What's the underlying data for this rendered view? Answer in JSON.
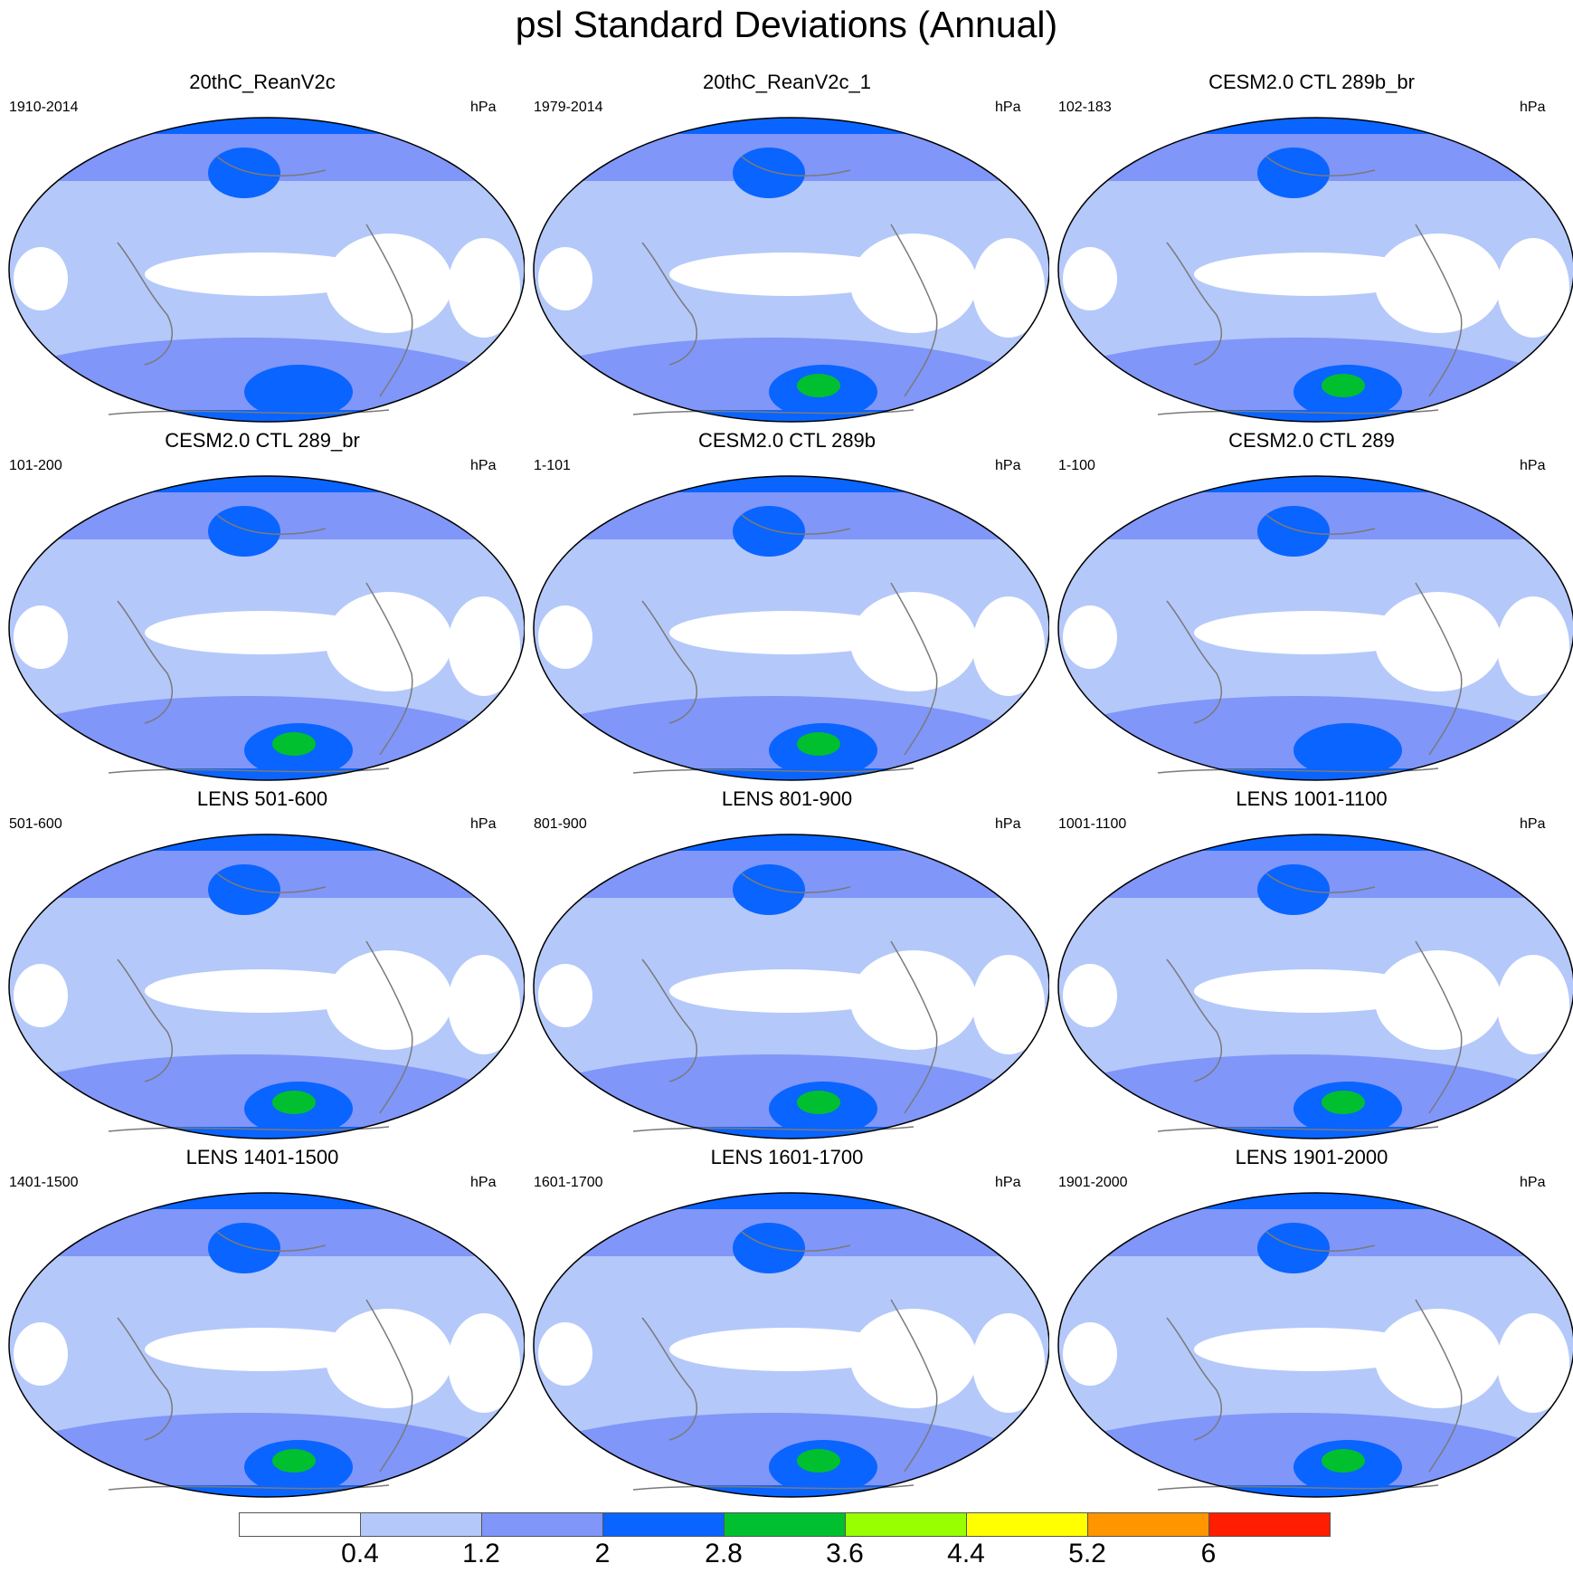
{
  "title": "psl Standard Deviations (Annual)",
  "unit_label": "hPa",
  "colorbar": {
    "levels": [
      "0.4",
      "1.2",
      "2",
      "2.8",
      "3.6",
      "4.4",
      "5.2",
      "6"
    ],
    "colors": [
      "#ffffff",
      "#b4c8fa",
      "#8096f8",
      "#0a64ff",
      "#00c030",
      "#96ff00",
      "#ffff00",
      "#ff9600",
      "#ff1e00"
    ]
  },
  "panels": [
    {
      "title": "20thC_ReanV2c",
      "years": "1910-2014",
      "unit": "hPa",
      "max_level": 3
    },
    {
      "title": "20thC_ReanV2c_1",
      "years": "1979-2014",
      "unit": "hPa",
      "max_level": 4
    },
    {
      "title": "CESM2.0 CTL 289b_br",
      "years": "102-183",
      "unit": "hPa",
      "max_level": 4
    },
    {
      "title": "CESM2.0 CTL 289_br",
      "years": "101-200",
      "unit": "hPa",
      "max_level": 4
    },
    {
      "title": "CESM2.0 CTL 289b",
      "years": "1-101",
      "unit": "hPa",
      "max_level": 4
    },
    {
      "title": "CESM2.0 CTL 289",
      "years": "1-100",
      "unit": "hPa",
      "max_level": 3
    },
    {
      "title": "LENS 501-600",
      "years": "501-600",
      "unit": "hPa",
      "max_level": 4
    },
    {
      "title": "LENS 801-900",
      "years": "801-900",
      "unit": "hPa",
      "max_level": 4
    },
    {
      "title": "LENS 1001-1100",
      "years": "1001-1100",
      "unit": "hPa",
      "max_level": 4
    },
    {
      "title": "LENS 1401-1500",
      "years": "1401-1500",
      "unit": "hPa",
      "max_level": 4
    },
    {
      "title": "LENS 1601-1700",
      "years": "1601-1700",
      "unit": "hPa",
      "max_level": 4
    },
    {
      "title": "LENS 1901-2000",
      "years": "1901-2000",
      "unit": "hPa",
      "max_level": 4
    }
  ]
}
